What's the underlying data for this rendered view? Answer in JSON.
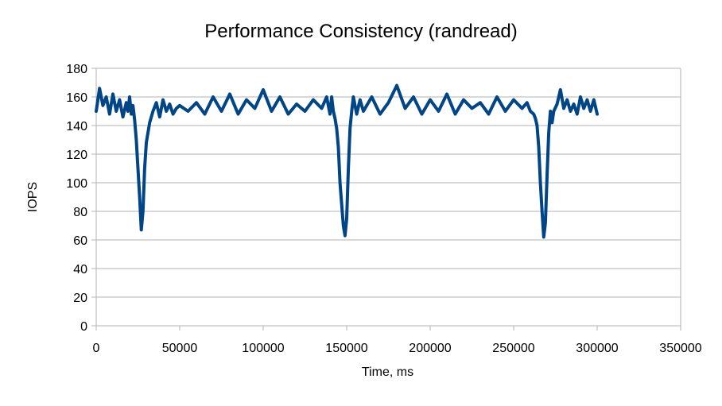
{
  "chart_data": {
    "type": "line",
    "title": "Performance Consistency (randread)",
    "xlabel": "Time, ms",
    "ylabel": "IOPS",
    "xlim": [
      0,
      350000
    ],
    "ylim": [
      0,
      180
    ],
    "x_ticks": [
      0,
      50000,
      100000,
      150000,
      200000,
      250000,
      300000,
      350000
    ],
    "y_ticks": [
      0,
      20,
      40,
      60,
      80,
      100,
      120,
      140,
      160,
      180
    ],
    "grid": true,
    "legend": "none",
    "series": [
      {
        "color": "#004586",
        "x": [
          0,
          2000,
          4000,
          6000,
          8000,
          10000,
          12000,
          14000,
          16000,
          18000,
          19000,
          20000,
          21000,
          22000,
          23000,
          24000,
          25000,
          26000,
          27000,
          28000,
          29000,
          30000,
          32000,
          34000,
          36000,
          38000,
          40000,
          42000,
          44000,
          46000,
          48000,
          50000,
          55000,
          60000,
          65000,
          70000,
          75000,
          80000,
          85000,
          90000,
          95000,
          100000,
          105000,
          110000,
          115000,
          120000,
          125000,
          130000,
          135000,
          138000,
          140000,
          141000,
          142000,
          143000,
          144000,
          145000,
          146000,
          147000,
          148000,
          149000,
          150000,
          151000,
          152000,
          153000,
          154000,
          156000,
          158000,
          160000,
          165000,
          170000,
          175000,
          180000,
          185000,
          190000,
          195000,
          200000,
          205000,
          210000,
          215000,
          220000,
          225000,
          230000,
          235000,
          240000,
          245000,
          250000,
          255000,
          258000,
          260000,
          262000,
          263000,
          264000,
          265000,
          266000,
          267000,
          268000,
          269000,
          270000,
          271000,
          272000,
          273000,
          274000,
          276000,
          278000,
          280000,
          282000,
          284000,
          286000,
          288000,
          290000,
          292000,
          294000,
          296000,
          298000,
          300000
        ],
        "y": [
          150,
          166,
          154,
          160,
          148,
          162,
          150,
          158,
          146,
          156,
          150,
          160,
          148,
          154,
          144,
          130,
          110,
          90,
          67,
          80,
          110,
          128,
          142,
          150,
          156,
          146,
          158,
          150,
          155,
          148,
          152,
          154,
          150,
          156,
          148,
          160,
          150,
          162,
          148,
          158,
          152,
          165,
          150,
          160,
          148,
          155,
          150,
          158,
          152,
          160,
          148,
          160,
          150,
          145,
          138,
          125,
          100,
          85,
          70,
          63,
          75,
          110,
          138,
          150,
          160,
          148,
          158,
          150,
          160,
          148,
          156,
          168,
          152,
          160,
          148,
          158,
          150,
          162,
          148,
          158,
          152,
          156,
          148,
          160,
          150,
          158,
          152,
          156,
          150,
          148,
          145,
          140,
          125,
          100,
          80,
          62,
          72,
          105,
          135,
          150,
          142,
          150,
          155,
          165,
          152,
          158,
          150,
          155,
          148,
          160,
          152,
          158,
          150,
          158,
          148
        ]
      }
    ]
  }
}
